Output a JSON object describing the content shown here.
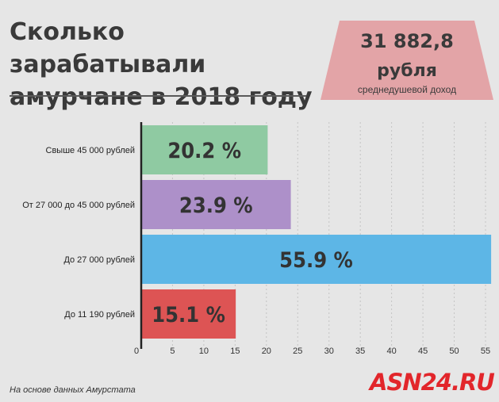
{
  "title": "Сколько зарабатывали амурчане в 2018 году",
  "badge": {
    "value": "31 882,8",
    "unit": "рубля",
    "caption": "среднедушевой доход",
    "color": "#e3a4a7"
  },
  "chart_data": {
    "type": "bar",
    "orientation": "horizontal",
    "categories": [
      "Свыше 45 000 рублей",
      "От 27 000 до 45 000 рублей",
      "До 27 000 рублей",
      "До 11 190 рублей"
    ],
    "values": [
      20.2,
      23.9,
      55.9,
      15.1
    ],
    "data_labels": [
      "20.2 %",
      "23.9 %",
      "55.9 %",
      "15.1 %"
    ],
    "colors": [
      "#8fcaa2",
      "#ad90c9",
      "#5db6e6",
      "#dd5454"
    ],
    "x_ticks": [
      "0",
      "5",
      "10",
      "15",
      "20",
      "25",
      "30",
      "35",
      "40",
      "45",
      "50",
      "55"
    ],
    "xlim": [
      0,
      55
    ],
    "grid": true
  },
  "source": "На основе данных Амурстата",
  "brand": "ASN24.RU"
}
